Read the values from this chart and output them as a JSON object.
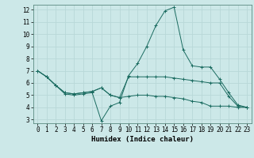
{
  "title": "",
  "xlabel": "Humidex (Indice chaleur)",
  "bg_color": "#cce8e8",
  "grid_color": "#b8d8d8",
  "line_color": "#1a6b60",
  "xlim": [
    -0.5,
    23.5
  ],
  "ylim": [
    2.7,
    12.4
  ],
  "yticks": [
    3,
    4,
    5,
    6,
    7,
    8,
    9,
    10,
    11,
    12
  ],
  "xticks": [
    0,
    1,
    2,
    3,
    4,
    5,
    6,
    7,
    8,
    9,
    10,
    11,
    12,
    13,
    14,
    15,
    16,
    17,
    18,
    19,
    20,
    21,
    22,
    23
  ],
  "line1_x": [
    0,
    1,
    2,
    3,
    4,
    5,
    6,
    7,
    8,
    9,
    10,
    11,
    12,
    13,
    14,
    15,
    16,
    17,
    18,
    19,
    20,
    21,
    22,
    23
  ],
  "line1_y": [
    7.0,
    6.5,
    5.8,
    5.2,
    5.1,
    5.2,
    5.3,
    5.6,
    5.0,
    4.8,
    4.9,
    5.0,
    5.0,
    4.9,
    4.9,
    4.8,
    4.7,
    4.5,
    4.4,
    4.1,
    4.1,
    4.1,
    4.0,
    4.0
  ],
  "line2_x": [
    0,
    1,
    2,
    3,
    4,
    5,
    6,
    7,
    8,
    9,
    10,
    11,
    12,
    13,
    14,
    15,
    16,
    17,
    18,
    19,
    20,
    21,
    22,
    23
  ],
  "line2_y": [
    7.0,
    6.5,
    5.8,
    5.1,
    5.0,
    5.1,
    5.2,
    2.9,
    4.1,
    4.4,
    6.6,
    7.6,
    9.0,
    10.7,
    11.9,
    12.2,
    8.7,
    7.4,
    7.3,
    7.3,
    6.3,
    5.2,
    4.2,
    4.0
  ],
  "line3_x": [
    0,
    1,
    2,
    3,
    4,
    5,
    6,
    7,
    8,
    9,
    10,
    11,
    12,
    13,
    14,
    15,
    16,
    17,
    18,
    19,
    20,
    21,
    22,
    23
  ],
  "line3_y": [
    7.0,
    6.5,
    5.8,
    5.2,
    5.1,
    5.2,
    5.3,
    5.6,
    5.0,
    4.8,
    6.5,
    6.5,
    6.5,
    6.5,
    6.5,
    6.4,
    6.3,
    6.2,
    6.1,
    6.0,
    6.0,
    4.9,
    4.1,
    4.0
  ],
  "marker": "+",
  "tick_fontsize": 5.5,
  "xlabel_fontsize": 6.5,
  "marker_size": 2.5,
  "line_width": 0.7
}
